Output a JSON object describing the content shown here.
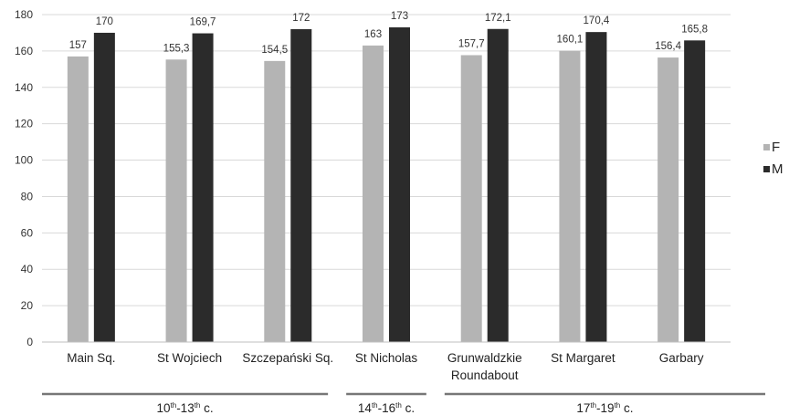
{
  "chart_data": {
    "type": "bar",
    "categories": [
      "Main Sq.",
      "St Wojciech",
      "Szczepański Sq.",
      "St Nicholas",
      "Grunwaldzkie Roundabout",
      "St Margaret",
      "Garbary"
    ],
    "category_lines": [
      [
        "Main Sq."
      ],
      [
        "St Wojciech"
      ],
      [
        "Szczepański Sq."
      ],
      [
        "St Nicholas"
      ],
      [
        "Grunwaldzkie",
        "Roundabout"
      ],
      [
        "St Margaret"
      ],
      [
        "Garbary"
      ]
    ],
    "series": [
      {
        "name": "F",
        "values": [
          157,
          155.3,
          154.5,
          163,
          157.7,
          160.1,
          156.4
        ],
        "labels": [
          "157",
          "155,3",
          "154,5",
          "163",
          "157,7",
          "160,1",
          "156,4"
        ]
      },
      {
        "name": "M",
        "values": [
          170,
          169.7,
          172,
          173,
          172.1,
          170.4,
          165.8
        ],
        "labels": [
          "170",
          "169,7",
          "172",
          "173",
          "172,1",
          "170,4",
          "165,8"
        ]
      }
    ],
    "ylim": [
      0,
      180
    ],
    "yticks": [
      0,
      20,
      40,
      60,
      80,
      100,
      120,
      140,
      160,
      180
    ],
    "grid": true,
    "legend": "right",
    "periods": [
      {
        "main": "10",
        "sup1": "th",
        "mid": "-13",
        "sup2": "th",
        "tail": " c.",
        "from": 0,
        "to": 2
      },
      {
        "main": "14",
        "sup1": "th",
        "mid": "-16",
        "sup2": "th",
        "tail": " c.",
        "from": 3,
        "to": 3
      },
      {
        "main": "17",
        "sup1": "th",
        "mid": "-19",
        "sup2": "th",
        "tail": " c.",
        "from": 4,
        "to": 6
      }
    ],
    "colors": {
      "F": "#b4b4b4",
      "M": "#2b2b2b",
      "grid": "#d9d9d9",
      "axis": "#bfbfbf",
      "period_line": "#777777"
    }
  }
}
